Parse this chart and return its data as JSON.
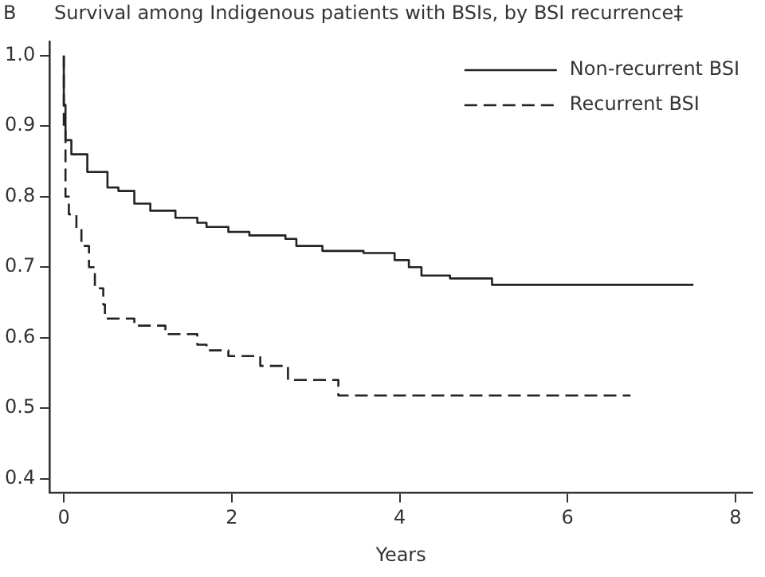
{
  "chart_data": {
    "type": "step",
    "title": "Survival among Indigenous patients with BSIs, by BSI recurrence‡",
    "xlabel": "Years",
    "annotations": [
      "B"
    ],
    "xlim": [
      -0.17,
      8.2
    ],
    "xticks": [
      0,
      2,
      4,
      6,
      8
    ],
    "ylim": [
      0.38,
      1.02
    ],
    "yticks": [
      0.4,
      0.5,
      0.6,
      0.7,
      0.8,
      0.9,
      {
        "value": 1,
        "label": "1.0"
      }
    ],
    "grid": false,
    "legend": "top right",
    "marker": "none",
    "series": [
      {
        "name": "Non-recurrent BSI",
        "color": "#222222",
        "line_style": "solid",
        "x": [
          0,
          0.02,
          0.09,
          0.28,
          0.52,
          0.65,
          0.84,
          1.03,
          1.33,
          1.59,
          1.7,
          1.96,
          2.21,
          2.64,
          2.77,
          3.08,
          3.57,
          3.94,
          4.11,
          4.26,
          4.6,
          5.1,
          5.25,
          7.5
        ],
        "values": [
          1.0,
          0.93,
          0.88,
          0.86,
          0.835,
          0.813,
          0.808,
          0.79,
          0.78,
          0.77,
          0.763,
          0.757,
          0.75,
          0.745,
          0.74,
          0.73,
          0.723,
          0.72,
          0.71,
          0.7,
          0.688,
          0.684,
          0.675,
          0.675
        ]
      },
      {
        "name": "Recurrent BSI",
        "color": "#222222",
        "line_style": "dashed",
        "x": [
          0,
          0.02,
          0.06,
          0.15,
          0.21,
          0.3,
          0.37,
          0.47,
          0.49,
          0.84,
          1.21,
          1.59,
          1.7,
          1.96,
          2.34,
          2.67,
          3.27,
          3.55,
          6.75
        ],
        "values": [
          1.0,
          0.895,
          0.8,
          0.775,
          0.755,
          0.73,
          0.7,
          0.67,
          0.647,
          0.627,
          0.617,
          0.605,
          0.59,
          0.582,
          0.574,
          0.56,
          0.54,
          0.518,
          0.518
        ]
      }
    ]
  }
}
